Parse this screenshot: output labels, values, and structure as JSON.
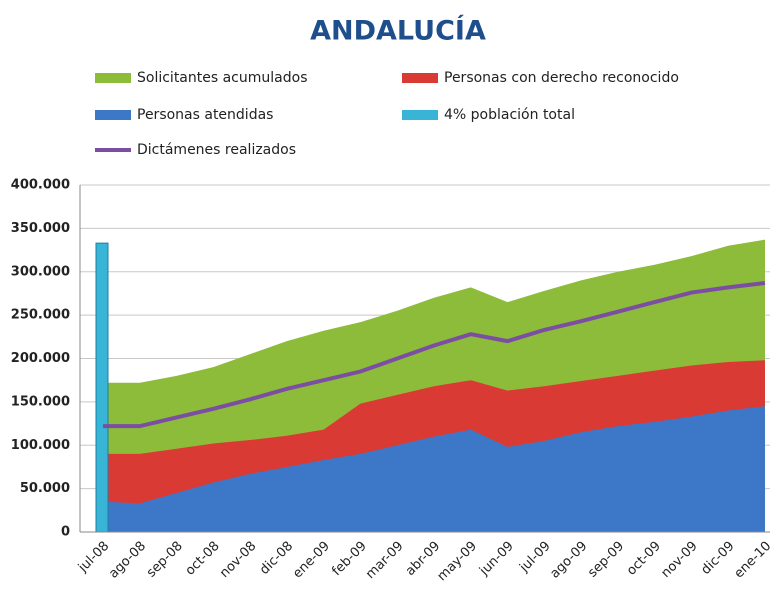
{
  "chart_data": {
    "type": "area",
    "title": "ANDALUCÍA",
    "categories": [
      "jul-08",
      "ago-08",
      "sep-08",
      "oct-08",
      "nov-08",
      "dic-08",
      "ene-09",
      "feb-09",
      "mar-09",
      "abr-09",
      "may-09",
      "jun-09",
      "jul-09",
      "ago-09",
      "sep-09",
      "oct-09",
      "nov-09",
      "dic-09",
      "ene-10"
    ],
    "series": [
      {
        "name": "Solicitantes acumulados",
        "color": "#8dbb3a",
        "kind": "area",
        "values": [
          172000,
          172000,
          180000,
          190000,
          205000,
          220000,
          232000,
          242000,
          255000,
          270000,
          282000,
          265000,
          278000,
          290000,
          300000,
          308000,
          318000,
          330000,
          337000
        ]
      },
      {
        "name": "Personas con derecho reconocido",
        "color": "#d93a34",
        "kind": "area",
        "values": [
          90000,
          90000,
          96000,
          102000,
          106000,
          111000,
          118000,
          148000,
          158000,
          168000,
          175000,
          163000,
          168000,
          174000,
          180000,
          186000,
          192000,
          196000,
          198000
        ]
      },
      {
        "name": "Personas atendidas",
        "color": "#3d78c8",
        "kind": "area",
        "values": [
          35000,
          33000,
          45000,
          57000,
          67000,
          75000,
          83000,
          90000,
          100000,
          110000,
          118000,
          98000,
          105000,
          115000,
          122000,
          127000,
          133000,
          140000,
          145000
        ]
      },
      {
        "name": "4% población total",
        "color": "#37b4d6",
        "kind": "bar",
        "values": [
          333000,
          null,
          null,
          null,
          null,
          null,
          null,
          null,
          null,
          null,
          null,
          null,
          null,
          null,
          null,
          null,
          null,
          null,
          null
        ]
      },
      {
        "name": "Dictámenes realizados",
        "color": "#7b4ea3",
        "kind": "line",
        "values": [
          122000,
          122000,
          132000,
          142000,
          153000,
          165000,
          175000,
          185000,
          200000,
          215000,
          228000,
          220000,
          233000,
          243000,
          254000,
          265000,
          276000,
          282000,
          287000
        ]
      }
    ],
    "ylim": [
      0,
      400000
    ],
    "yticks": [
      0,
      {
        "value": 50000,
        "label": "50.000"
      },
      {
        "value": 100000,
        "label": "100.000"
      },
      {
        "value": 150000,
        "label": "150.000"
      },
      {
        "value": 200000,
        "label": "200.000"
      },
      {
        "value": 250000,
        "label": "250.000"
      },
      {
        "value": 300000,
        "label": "300.000"
      },
      {
        "value": 350000,
        "label": "350.000"
      },
      {
        "value": 400000,
        "label": "400.000"
      }
    ],
    "grid": true
  }
}
